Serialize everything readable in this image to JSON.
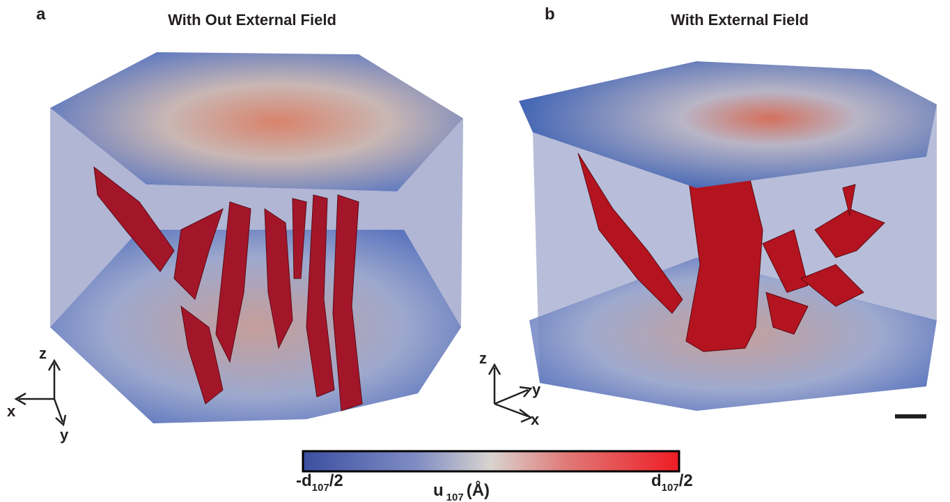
{
  "panels": [
    {
      "label": "a",
      "title": "With Out External Field",
      "axes": {
        "z": "z",
        "x": "x",
        "y": "y"
      }
    },
    {
      "label": "b",
      "title": "With External Field",
      "axes": {
        "z": "z",
        "y": "y",
        "x": "x"
      }
    }
  ],
  "colorbar": {
    "min_label": {
      "main": "-d",
      "sub": "107",
      "tail": "/2"
    },
    "max_label": {
      "main": "d",
      "sub": "107",
      "tail": "/2"
    },
    "quantity": {
      "main": "u",
      "sub": "107",
      "tail": "(Å)"
    }
  }
}
